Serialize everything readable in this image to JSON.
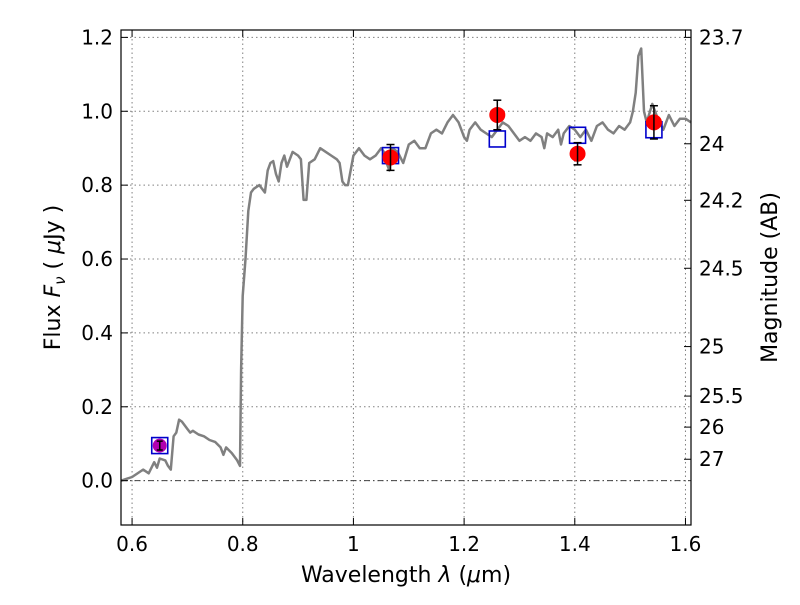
{
  "chart_data": {
    "type": "scatter",
    "xlabel_prefix": "Wavelength ",
    "xlabel_symbol": "λ",
    "xlabel_unit_open": " (",
    "xlabel_unit_mu": "μ",
    "xlabel_unit_close": "m)",
    "ylabel_prefix": "Flux  ",
    "ylabel_symbol": "F",
    "ylabel_sub": "ν",
    "ylabel_unit_open": "  ( ",
    "ylabel_unit_mu": "μ",
    "ylabel_unit_close": "Jy )",
    "y2label": "Magnitude (AB)",
    "xlim": [
      0.58,
      1.61
    ],
    "ylim": [
      -0.12,
      1.22
    ],
    "grid": true,
    "x_ticks": [
      0.6,
      0.8,
      1.0,
      1.2,
      1.4,
      1.6
    ],
    "x_tick_labels": [
      "0.6",
      "0.8",
      "1",
      "1.2",
      "1.4",
      "1.6"
    ],
    "y_ticks": [
      0.0,
      0.2,
      0.4,
      0.6,
      0.8,
      1.0,
      1.2
    ],
    "y_tick_labels": [
      "0.0",
      "0.2",
      "0.4",
      "0.6",
      "0.8",
      "1.0",
      "1.2"
    ],
    "y2_ticks": [
      {
        "label": "23.7",
        "flux": 1.2
      },
      {
        "label": "24",
        "flux": 0.912
      },
      {
        "label": "24.2",
        "flux": 0.759
      },
      {
        "label": "24.5",
        "flux": 0.575
      },
      {
        "label": "25",
        "flux": 0.363
      },
      {
        "label": "25.5",
        "flux": 0.229
      },
      {
        "label": "26",
        "flux": 0.145
      },
      {
        "label": "27",
        "flux": 0.058
      }
    ],
    "colors": {
      "model": "#808080",
      "observed": "#ff0000",
      "model_box": "#0000cc",
      "purple_point": "#b000b0",
      "error_bar": "#000000",
      "grid": "#808080"
    },
    "model_spectrum": {
      "x": [
        0.58,
        0.6,
        0.62,
        0.63,
        0.64,
        0.645,
        0.65,
        0.66,
        0.665,
        0.67,
        0.675,
        0.68,
        0.685,
        0.69,
        0.7,
        0.705,
        0.71,
        0.72,
        0.73,
        0.74,
        0.75,
        0.76,
        0.765,
        0.77,
        0.78,
        0.79,
        0.795,
        0.797,
        0.8,
        0.805,
        0.81,
        0.815,
        0.82,
        0.83,
        0.84,
        0.845,
        0.85,
        0.855,
        0.86,
        0.865,
        0.87,
        0.875,
        0.88,
        0.885,
        0.89,
        0.9,
        0.905,
        0.91,
        0.915,
        0.92,
        0.93,
        0.94,
        0.95,
        0.96,
        0.97,
        0.975,
        0.98,
        0.985,
        0.99,
        1.0,
        1.01,
        1.02,
        1.03,
        1.04,
        1.05,
        1.055,
        1.06,
        1.065,
        1.07,
        1.08,
        1.09,
        1.1,
        1.11,
        1.12,
        1.13,
        1.14,
        1.15,
        1.16,
        1.17,
        1.18,
        1.19,
        1.2,
        1.205,
        1.21,
        1.22,
        1.23,
        1.24,
        1.25,
        1.26,
        1.27,
        1.28,
        1.29,
        1.3,
        1.31,
        1.32,
        1.33,
        1.34,
        1.345,
        1.35,
        1.36,
        1.37,
        1.375,
        1.38,
        1.39,
        1.4,
        1.41,
        1.42,
        1.43,
        1.44,
        1.45,
        1.46,
        1.47,
        1.48,
        1.49,
        1.5,
        1.505,
        1.51,
        1.515,
        1.52,
        1.525,
        1.53,
        1.54,
        1.55,
        1.56,
        1.57,
        1.58,
        1.59,
        1.6,
        1.61
      ],
      "y": [
        0.0,
        0.01,
        0.03,
        0.02,
        0.05,
        0.035,
        0.06,
        0.055,
        0.04,
        0.03,
        0.12,
        0.13,
        0.165,
        0.16,
        0.14,
        0.13,
        0.135,
        0.125,
        0.12,
        0.11,
        0.105,
        0.09,
        0.07,
        0.09,
        0.075,
        0.055,
        0.04,
        0.3,
        0.5,
        0.6,
        0.73,
        0.78,
        0.79,
        0.8,
        0.78,
        0.84,
        0.86,
        0.865,
        0.83,
        0.81,
        0.86,
        0.88,
        0.85,
        0.87,
        0.89,
        0.88,
        0.87,
        0.76,
        0.76,
        0.86,
        0.87,
        0.9,
        0.89,
        0.88,
        0.87,
        0.86,
        0.81,
        0.8,
        0.8,
        0.88,
        0.9,
        0.88,
        0.87,
        0.88,
        0.9,
        0.89,
        0.86,
        0.84,
        0.9,
        0.89,
        0.86,
        0.91,
        0.92,
        0.9,
        0.9,
        0.94,
        0.95,
        0.94,
        0.97,
        0.99,
        0.97,
        0.93,
        0.92,
        0.95,
        0.97,
        0.95,
        0.94,
        0.93,
        0.95,
        0.97,
        0.96,
        0.94,
        0.92,
        0.93,
        0.92,
        0.94,
        0.93,
        0.9,
        0.94,
        0.93,
        0.95,
        0.91,
        0.94,
        0.96,
        0.95,
        0.93,
        0.95,
        0.92,
        0.96,
        0.97,
        0.95,
        0.94,
        0.96,
        0.95,
        0.97,
        1.0,
        1.05,
        1.15,
        1.17,
        1.0,
        0.97,
        1.02,
        0.98,
        0.95,
        0.99,
        0.96,
        0.98,
        0.98,
        0.97
      ]
    },
    "observed_points": [
      {
        "x": 1.067,
        "y": 0.875,
        "yerr": 0.035
      },
      {
        "x": 1.26,
        "y": 0.99,
        "yerr": 0.04
      },
      {
        "x": 1.405,
        "y": 0.885,
        "yerr": 0.03
      },
      {
        "x": 1.543,
        "y": 0.97,
        "yerr": 0.045
      }
    ],
    "model_boxes": [
      {
        "x": 0.65,
        "y": 0.095
      },
      {
        "x": 1.067,
        "y": 0.88
      },
      {
        "x": 1.26,
        "y": 0.925
      },
      {
        "x": 1.405,
        "y": 0.935
      },
      {
        "x": 1.543,
        "y": 0.95
      }
    ],
    "purple_points": [
      {
        "x": 0.65,
        "y": 0.095,
        "yerr": 0.012
      }
    ]
  }
}
